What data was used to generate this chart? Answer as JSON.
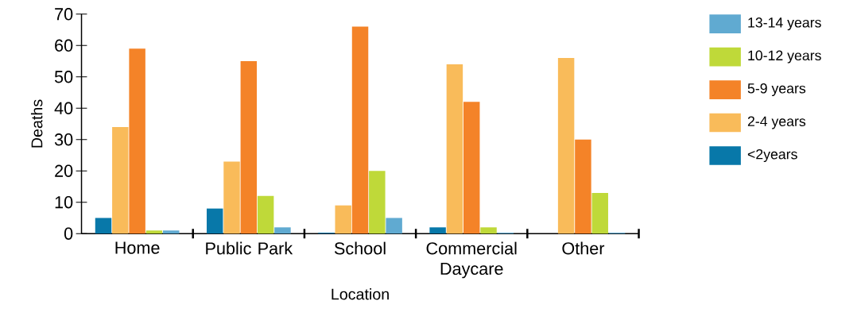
{
  "chart_data": {
    "type": "bar",
    "xlabel": "Location",
    "ylabel": "Deaths",
    "categories": [
      "Home",
      "Public Park",
      "School",
      "Commercial Daycare",
      "Other"
    ],
    "series": [
      {
        "name": "<2years",
        "color": "#0878a9",
        "values": [
          5,
          8,
          0.3,
          2,
          0
        ]
      },
      {
        "name": "2-4 years",
        "color": "#f9bb5a",
        "values": [
          34,
          23,
          9,
          54,
          56
        ]
      },
      {
        "name": "5-9 years",
        "color": "#f48328",
        "values": [
          59,
          55,
          66,
          42,
          30
        ]
      },
      {
        "name": "10-12 years",
        "color": "#bfd939",
        "values": [
          1,
          12,
          20,
          2,
          13
        ]
      },
      {
        "name": "13-14 years",
        "color": "#60aad1",
        "values": [
          1,
          2,
          5,
          0.3,
          0.3
        ]
      }
    ],
    "ylim": [
      0,
      70
    ],
    "yticks": [
      0,
      10,
      20,
      30,
      40,
      50,
      60,
      70
    ],
    "grid": false,
    "legend": "right"
  }
}
